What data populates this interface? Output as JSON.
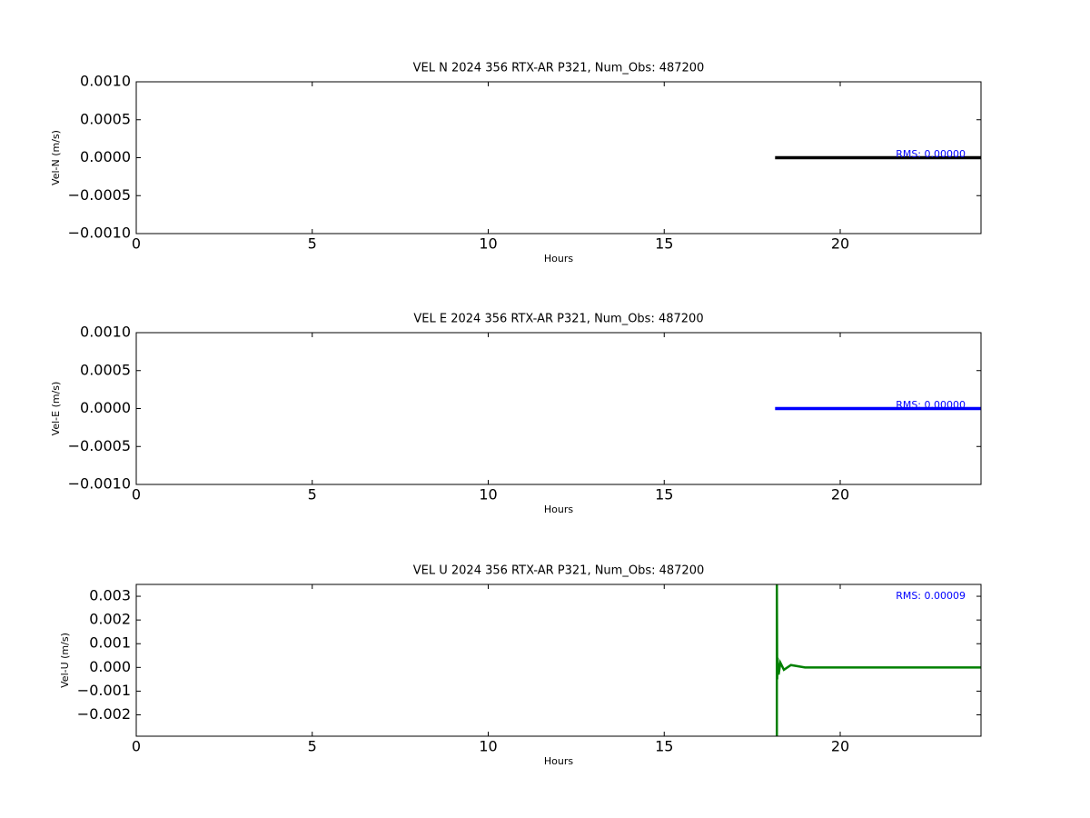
{
  "chart_data": [
    {
      "type": "line",
      "title": "VEL N 2024 356 RTX-AR  P321, Num_Obs: 487200",
      "xlabel": "Hours",
      "ylabel": "Vel-N (m/s)",
      "annotation": "RMS:  0.00000",
      "x": [
        18.15,
        24
      ],
      "values": [
        0,
        0
      ],
      "color": "#000000",
      "xlim": [
        0,
        24
      ],
      "xticks": [
        0,
        5,
        10,
        15,
        20
      ],
      "ylim": [
        -0.001,
        0.001
      ],
      "yticks": [
        {
          "value": -0.001,
          "label": "−0.0010"
        },
        {
          "value": -0.0005,
          "label": "−0.0005"
        },
        {
          "value": 0,
          "label": "0.0000"
        },
        {
          "value": 0.0005,
          "label": "0.0005"
        },
        {
          "value": 0.001,
          "label": "0.0010"
        }
      ]
    },
    {
      "type": "line",
      "title": "VEL E 2024 356 RTX-AR  P321, Num_Obs: 487200",
      "xlabel": "Hours",
      "ylabel": "Vel-E (m/s)",
      "annotation": "RMS:  0.00000",
      "x": [
        18.15,
        24
      ],
      "values": [
        0,
        0
      ],
      "color": "#0000ff",
      "xlim": [
        0,
        24
      ],
      "xticks": [
        0,
        5,
        10,
        15,
        20
      ],
      "ylim": [
        -0.001,
        0.001
      ],
      "yticks": [
        {
          "value": -0.001,
          "label": "−0.0010"
        },
        {
          "value": -0.0005,
          "label": "−0.0005"
        },
        {
          "value": 0,
          "label": "0.0000"
        },
        {
          "value": 0.0005,
          "label": "0.0005"
        },
        {
          "value": 0.001,
          "label": "0.0010"
        }
      ]
    },
    {
      "type": "line",
      "title": "VEL U 2024 356 RTX-AR  P321, Num_Obs: 487200",
      "xlabel": "Hours",
      "ylabel": "Vel-U (m/s)",
      "annotation": "RMS:  0.00009",
      "x": [
        18.2,
        18.2,
        18.21,
        18.22,
        18.25,
        18.3,
        18.4,
        18.6,
        19,
        19.5,
        20,
        24
      ],
      "values": [
        -0.0029,
        0.0035,
        -0.0005,
        0.0004,
        -0.0003,
        0.0002,
        -0.0001,
        0.0001,
        0,
        0,
        0,
        0
      ],
      "color": "#008000",
      "xlim": [
        0,
        24
      ],
      "xticks": [
        0,
        5,
        10,
        15,
        20
      ],
      "ylim": [
        -0.0029,
        0.0035
      ],
      "yticks": [
        {
          "value": -0.002,
          "label": "−0.002"
        },
        {
          "value": -0.001,
          "label": "−0.001"
        },
        {
          "value": 0,
          "label": "0.000"
        },
        {
          "value": 0.001,
          "label": "0.001"
        },
        {
          "value": 0.002,
          "label": "0.002"
        },
        {
          "value": 0.003,
          "label": "0.003"
        }
      ]
    }
  ]
}
